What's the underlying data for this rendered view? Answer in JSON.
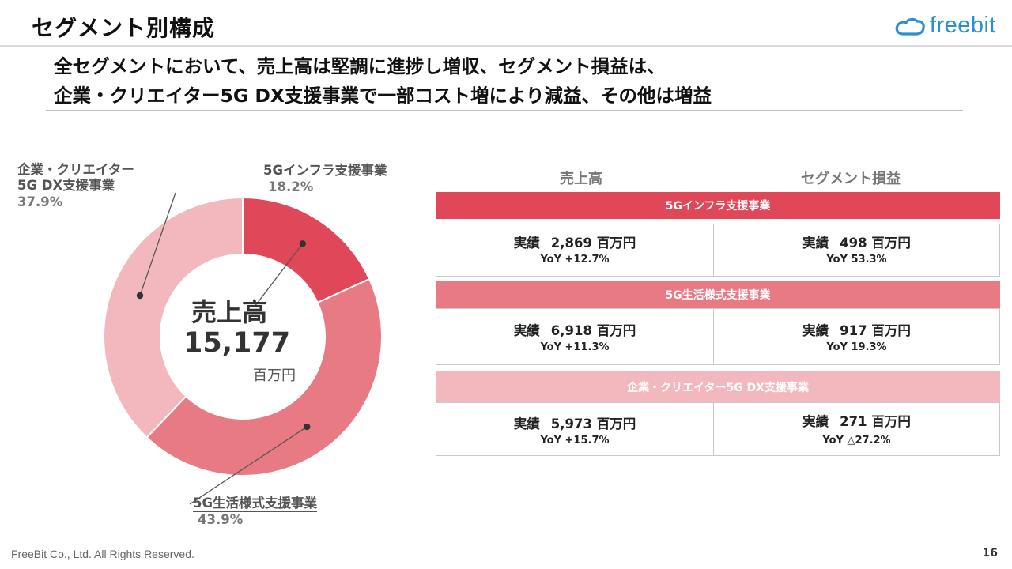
{
  "page": {
    "title": "セグメント別構成",
    "headline_line1": "全セグメントにおいて、売上高は堅調に進捗し増収、セグメント損益は、",
    "headline_line2": "企業・クリエイター5G DX支援事業で一部コスト増により減益、その他は増益",
    "footer": "FreeBit Co., Ltd. All Rights Reserved.",
    "page_number": "16"
  },
  "logo": {
    "text": "freebit",
    "color": "#2b8fd6"
  },
  "chart_data": {
    "type": "pie",
    "variant": "donut",
    "center_title": "売上高",
    "center_value": "15,177",
    "center_unit": "百万円",
    "slices": [
      {
        "label": "5Gインフラ支援事業",
        "percent": 18.2,
        "percent_label": "18.2%",
        "color": "#e0485a"
      },
      {
        "label": "5G生活様式支援事業",
        "percent": 43.9,
        "percent_label": "43.9%",
        "color": "#e87a84"
      },
      {
        "label_line1": "企業・クリエイター",
        "label_line2": "5G DX支援事業",
        "percent": 37.9,
        "percent_label": "37.9%",
        "color": "#f2b8be"
      }
    ]
  },
  "table": {
    "col_sales": "売上高",
    "col_profit": "セグメント損益",
    "segments": [
      {
        "name": "5Gインフラ支援事業",
        "color": "#e0485a",
        "sales": {
          "prefix": "実績",
          "value": "2,869 百万円",
          "yoy": "YoY +12.7%"
        },
        "profit": {
          "prefix": "実績",
          "value": "498 百万円",
          "yoy": "YoY 53.3%"
        }
      },
      {
        "name": "5G生活様式支援事業",
        "color": "#e87a84",
        "sales": {
          "prefix": "実績",
          "value": "6,918 百万円",
          "yoy": "YoY +11.3%"
        },
        "profit": {
          "prefix": "実績",
          "value": "917 百万円",
          "yoy": "YoY 19.3%"
        }
      },
      {
        "name": "企業・クリエイター5G DX支援事業",
        "color": "#f2b8be",
        "sales": {
          "prefix": "実績",
          "value": "5,973 百万円",
          "yoy": "YoY +15.7%"
        },
        "profit": {
          "prefix": "実績",
          "value": "271 百万円",
          "yoy": "YoY △27.2%"
        }
      }
    ]
  }
}
